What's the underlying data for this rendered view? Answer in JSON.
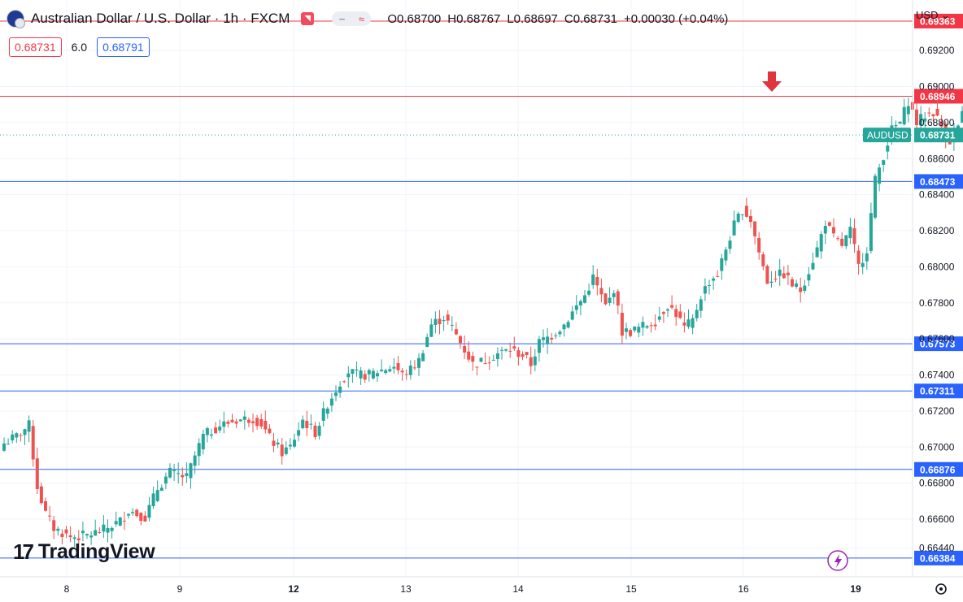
{
  "header": {
    "title": "Australian Dollar / U.S. Dollar · 1h · FXCM",
    "ohlc": {
      "open": "O0.68700",
      "high": "H0.68767",
      "low": "L0.68697",
      "close": "C0.68731",
      "change": "+0.00030 (+0.04%)"
    }
  },
  "quote": {
    "bid": "0.68731",
    "spread": "6.0",
    "ask": "0.68791"
  },
  "currency_selector": "USD",
  "brand": "TradingView",
  "colors": {
    "up": "#26a69a",
    "down": "#ef5350",
    "level_blue": "#2962ff",
    "level_red": "#f23645",
    "last": "#26a69a"
  },
  "chart_data": {
    "type": "candlestick",
    "symbol": "AUDUSD",
    "last_price": 0.68731,
    "ylim": [
      0.6628,
      0.6948
    ],
    "y_ticks": [
      "0.66440",
      "0.66600",
      "0.66800",
      "0.67000",
      "0.67200",
      "0.67400",
      "0.67600",
      "0.67800",
      "0.68000",
      "0.68200",
      "0.68400",
      "0.68600",
      "0.68800",
      "0.69000",
      "0.69200"
    ],
    "x_labels": [
      "8",
      "9",
      "12",
      "13",
      "14",
      "15",
      "16",
      "19"
    ],
    "levels": [
      {
        "value": 0.69363,
        "label": "0.69363",
        "color": "#f23645"
      },
      {
        "value": 0.68946,
        "label": "0.68946",
        "color": "#f23645"
      },
      {
        "value": 0.68473,
        "label": "0.68473",
        "color": "#2962ff"
      },
      {
        "value": 0.67573,
        "label": "0.67573",
        "color": "#2962ff"
      },
      {
        "value": 0.67311,
        "label": "0.67311",
        "color": "#2962ff"
      },
      {
        "value": 0.66876,
        "label": "0.66876",
        "color": "#2962ff"
      },
      {
        "value": 0.66384,
        "label": "0.66384",
        "color": "#2962ff"
      }
    ],
    "close_path": [
      [
        0,
        0.6702
      ],
      [
        3,
        0.6706
      ],
      [
        6,
        0.6712
      ],
      [
        8,
        0.6678
      ],
      [
        10,
        0.6663
      ],
      [
        12,
        0.6655
      ],
      [
        16,
        0.665
      ],
      [
        20,
        0.6651
      ],
      [
        24,
        0.6654
      ],
      [
        28,
        0.6659
      ],
      [
        30,
        0.6665
      ],
      [
        34,
        0.6661
      ],
      [
        37,
        0.6677
      ],
      [
        40,
        0.6686
      ],
      [
        44,
        0.6683
      ],
      [
        46,
        0.6695
      ],
      [
        48,
        0.6706
      ],
      [
        52,
        0.6712
      ],
      [
        56,
        0.6715
      ],
      [
        60,
        0.6716
      ],
      [
        62,
        0.6713
      ],
      [
        64,
        0.6705
      ],
      [
        67,
        0.6697
      ],
      [
        69,
        0.67
      ],
      [
        72,
        0.6715
      ],
      [
        75,
        0.6708
      ],
      [
        78,
        0.6724
      ],
      [
        81,
        0.6736
      ],
      [
        83,
        0.6742
      ],
      [
        85,
        0.674
      ],
      [
        88,
        0.674
      ],
      [
        90,
        0.6742
      ],
      [
        94,
        0.6745
      ],
      [
        96,
        0.674
      ],
      [
        98,
        0.6743
      ],
      [
        100,
        0.6748
      ],
      [
        103,
        0.6768
      ],
      [
        106,
        0.6772
      ],
      [
        108,
        0.6766
      ],
      [
        110,
        0.6758
      ],
      [
        113,
        0.6746
      ],
      [
        116,
        0.6748
      ],
      [
        119,
        0.6752
      ],
      [
        122,
        0.6754
      ],
      [
        125,
        0.6751
      ],
      [
        127,
        0.6746
      ],
      [
        129,
        0.6758
      ],
      [
        132,
        0.6762
      ],
      [
        135,
        0.6768
      ],
      [
        138,
        0.6778
      ],
      [
        140,
        0.6784
      ],
      [
        142,
        0.6794
      ],
      [
        145,
        0.6778
      ],
      [
        146,
        0.6782
      ],
      [
        147,
        0.6788
      ],
      [
        149,
        0.6764
      ],
      [
        151,
        0.6764
      ],
      [
        154,
        0.6767
      ],
      [
        157,
        0.677
      ],
      [
        160,
        0.6779
      ],
      [
        162,
        0.6774
      ],
      [
        164,
        0.6766
      ],
      [
        166,
        0.677
      ],
      [
        168,
        0.6784
      ],
      [
        170,
        0.6792
      ],
      [
        172,
        0.6796
      ],
      [
        174,
        0.681
      ],
      [
        176,
        0.6823
      ],
      [
        178,
        0.6832
      ],
      [
        180,
        0.6826
      ],
      [
        182,
        0.6808
      ],
      [
        184,
        0.6792
      ],
      [
        186,
        0.6795
      ],
      [
        188,
        0.6796
      ],
      [
        190,
        0.679
      ],
      [
        192,
        0.6787
      ],
      [
        194,
        0.6798
      ],
      [
        196,
        0.681
      ],
      [
        198,
        0.6825
      ],
      [
        200,
        0.6816
      ],
      [
        202,
        0.6812
      ],
      [
        204,
        0.682
      ],
      [
        206,
        0.68
      ],
      [
        208,
        0.681
      ],
      [
        210,
        0.6848
      ],
      [
        212,
        0.6862
      ],
      [
        214,
        0.6876
      ],
      [
        216,
        0.688
      ],
      [
        218,
        0.6892
      ],
      [
        220,
        0.688
      ],
      [
        222,
        0.6884
      ],
      [
        224,
        0.6886
      ],
      [
        226,
        0.6878
      ],
      [
        228,
        0.687
      ],
      [
        230,
        0.6878
      ],
      [
        232,
        0.689
      ],
      [
        234,
        0.6892
      ],
      [
        236,
        0.6882
      ],
      [
        238,
        0.6874
      ],
      [
        240,
        0.6872
      ],
      [
        242,
        0.6876
      ],
      [
        244,
        0.687
      ],
      [
        246,
        0.6866
      ],
      [
        248,
        0.687
      ],
      [
        250,
        0.6876
      ],
      [
        252,
        0.6878
      ],
      [
        253,
        0.6873
      ]
    ],
    "annotation": "down-arrow above high near 0.68946"
  }
}
